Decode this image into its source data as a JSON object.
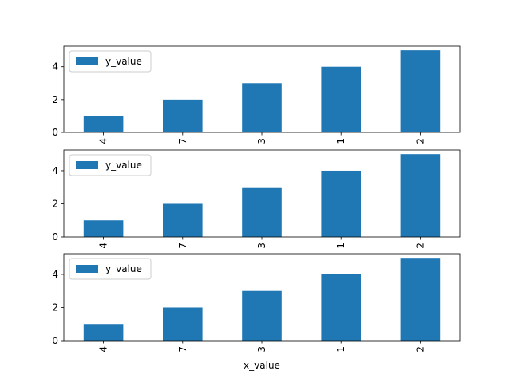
{
  "chart_data": [
    {
      "type": "bar",
      "categories": [
        "4",
        "7",
        "3",
        "1",
        "2"
      ],
      "series": [
        {
          "name": "y_value",
          "values": [
            1,
            2,
            3,
            4,
            5
          ],
          "color": "#1f77b4"
        }
      ],
      "xlabel": "",
      "ylabel": "",
      "ylim": [
        0,
        5.25
      ],
      "yticks": [
        0,
        2,
        4
      ],
      "xtick_rotation": 90,
      "legend": "top-left",
      "grid": false
    },
    {
      "type": "bar",
      "categories": [
        "4",
        "7",
        "3",
        "1",
        "2"
      ],
      "series": [
        {
          "name": "y_value",
          "values": [
            1,
            2,
            3,
            4,
            5
          ],
          "color": "#1f77b4"
        }
      ],
      "xlabel": "",
      "ylabel": "",
      "ylim": [
        0,
        5.25
      ],
      "yticks": [
        0,
        2,
        4
      ],
      "xtick_rotation": 90,
      "legend": "top-left",
      "grid": false
    },
    {
      "type": "bar",
      "categories": [
        "4",
        "7",
        "3",
        "1",
        "2"
      ],
      "series": [
        {
          "name": "y_value",
          "values": [
            1,
            2,
            3,
            4,
            5
          ],
          "color": "#1f77b4"
        }
      ],
      "xlabel": "x_value",
      "ylabel": "",
      "ylim": [
        0,
        5.25
      ],
      "yticks": [
        0,
        2,
        4
      ],
      "xtick_rotation": 90,
      "legend": "top-left",
      "grid": false
    }
  ]
}
